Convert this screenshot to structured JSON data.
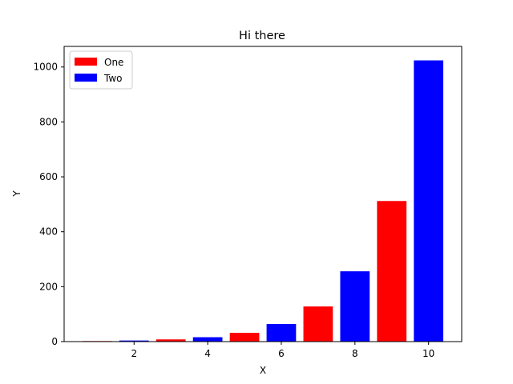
{
  "chart_data": {
    "type": "bar",
    "title": "Hi there",
    "xlabel": "X",
    "ylabel": "Y",
    "xlim": [
      0.1,
      10.9
    ],
    "ylim": [
      0,
      1075
    ],
    "xticks": [
      2,
      4,
      6,
      8,
      10
    ],
    "yticks": [
      0,
      200,
      400,
      600,
      800,
      1000
    ],
    "legend_position": "upper-left",
    "series": [
      {
        "name": "One",
        "color": "#ff0000",
        "x": [
          1,
          3,
          5,
          7,
          9
        ],
        "values": [
          2,
          8,
          32,
          128,
          512
        ]
      },
      {
        "name": "Two",
        "color": "#0000ff",
        "x": [
          2,
          4,
          6,
          8,
          10
        ],
        "values": [
          4,
          16,
          64,
          256,
          1024
        ]
      }
    ],
    "bar_width": 0.8
  }
}
